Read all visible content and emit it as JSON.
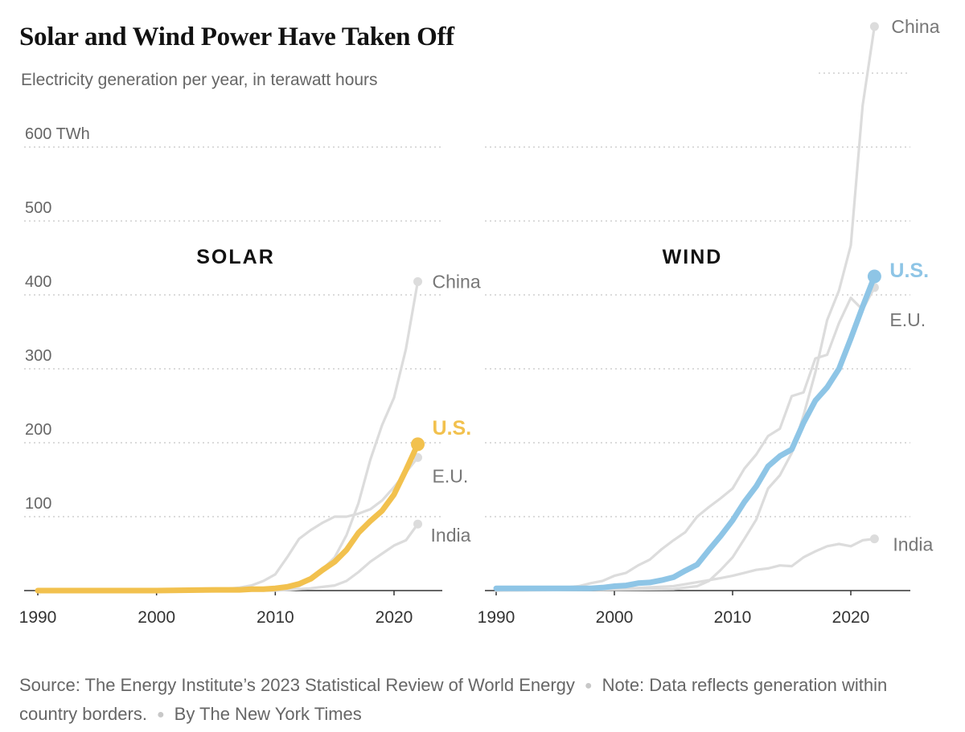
{
  "header": {
    "title": "Solar and Wind Power Have Taken Off",
    "subtitle": "Electricity generation per year, in terawatt hours"
  },
  "footer": {
    "source": "Source: The Energy Institute’s 2023 Statistical Review of World Energy",
    "note": "Note: Data reflects generation within country borders.",
    "byline": "By The New York Times"
  },
  "colors": {
    "solar": "#f2c14e",
    "wind": "#8ec5e6",
    "other": "#dcdcdc"
  },
  "chart_data": [
    {
      "type": "line",
      "title": "SOLAR",
      "xlim": [
        1990,
        2024
      ],
      "ylim": [
        0,
        650
      ],
      "x_ticks": [
        1990,
        2000,
        2010,
        2020
      ],
      "y_ticks": [
        {
          "value": 100,
          "label": "100"
        },
        {
          "value": 200,
          "label": "200"
        },
        {
          "value": 300,
          "label": "300"
        },
        {
          "value": 400,
          "label": "400"
        },
        {
          "value": 500,
          "label": "500"
        },
        {
          "value": 600,
          "label": "600 TWh"
        }
      ],
      "grid": true,
      "series": [
        {
          "name": "China",
          "highlight": false,
          "x": [
            1990,
            2005,
            2010,
            2011,
            2012,
            2013,
            2014,
            2015,
            2016,
            2017,
            2018,
            2019,
            2020,
            2021,
            2022
          ],
          "y": [
            0,
            0,
            1,
            3,
            6,
            15,
            29,
            45,
            75,
            118,
            177,
            224,
            261,
            327,
            418
          ]
        },
        {
          "name": "E.U.",
          "highlight": false,
          "x": [
            1990,
            2005,
            2007,
            2008,
            2009,
            2010,
            2011,
            2012,
            2013,
            2014,
            2015,
            2016,
            2017,
            2018,
            2019,
            2020,
            2021,
            2022
          ],
          "y": [
            0,
            1,
            4,
            7,
            13,
            22,
            45,
            70,
            82,
            92,
            100,
            100,
            104,
            110,
            122,
            140,
            160,
            180
          ]
        },
        {
          "name": "India",
          "highlight": false,
          "x": [
            1990,
            2010,
            2011,
            2012,
            2013,
            2014,
            2015,
            2016,
            2017,
            2018,
            2019,
            2020,
            2021,
            2022
          ],
          "y": [
            0,
            0,
            1,
            2,
            3,
            5,
            7,
            13,
            25,
            39,
            50,
            61,
            68,
            90
          ]
        },
        {
          "name": "U.S.",
          "highlight": true,
          "x": [
            1990,
            1995,
            2000,
            2005,
            2006,
            2007,
            2008,
            2009,
            2010,
            2011,
            2012,
            2013,
            2014,
            2015,
            2016,
            2017,
            2018,
            2019,
            2020,
            2021,
            2022
          ],
          "y": [
            0,
            0,
            0,
            1,
            1,
            1,
            2,
            2,
            3,
            5,
            9,
            16,
            28,
            39,
            55,
            78,
            94,
            108,
            130,
            163,
            198
          ]
        }
      ]
    },
    {
      "type": "line",
      "title": "WIND",
      "xlim": [
        1990,
        2024
      ],
      "ylim": [
        0,
        700
      ],
      "x_ticks": [
        1990,
        2000,
        2010,
        2020
      ],
      "y_ticks": [
        {
          "value": 100,
          "label": ""
        },
        {
          "value": 200,
          "label": ""
        },
        {
          "value": 300,
          "label": ""
        },
        {
          "value": 400,
          "label": ""
        },
        {
          "value": 500,
          "label": ""
        },
        {
          "value": 600,
          "label": ""
        },
        {
          "value": 700,
          "label": ""
        }
      ],
      "grid": true,
      "series": [
        {
          "name": "China",
          "highlight": false,
          "x": [
            1990,
            2005,
            2006,
            2007,
            2008,
            2009,
            2010,
            2011,
            2012,
            2013,
            2014,
            2015,
            2016,
            2017,
            2018,
            2019,
            2020,
            2021,
            2022
          ],
          "y": [
            0,
            2,
            4,
            6,
            13,
            28,
            45,
            70,
            96,
            138,
            156,
            186,
            237,
            295,
            366,
            406,
            467,
            656,
            763
          ]
        },
        {
          "name": "E.U.",
          "highlight": false,
          "x": [
            1990,
            1995,
            1997,
            1998,
            1999,
            2000,
            2001,
            2002,
            2003,
            2004,
            2005,
            2006,
            2007,
            2008,
            2009,
            2010,
            2011,
            2012,
            2013,
            2014,
            2015,
            2016,
            2017,
            2018,
            2019,
            2020,
            2021,
            2022
          ],
          "y": [
            1,
            3,
            6,
            10,
            13,
            20,
            24,
            34,
            42,
            56,
            68,
            79,
            100,
            113,
            125,
            138,
            165,
            184,
            209,
            219,
            263,
            268,
            314,
            319,
            362,
            396,
            380,
            410
          ]
        },
        {
          "name": "India",
          "highlight": false,
          "x": [
            1990,
            2000,
            2005,
            2008,
            2009,
            2010,
            2011,
            2012,
            2013,
            2014,
            2015,
            2016,
            2017,
            2018,
            2019,
            2020,
            2021,
            2022
          ],
          "y": [
            0,
            2,
            6,
            14,
            17,
            20,
            24,
            28,
            30,
            34,
            33,
            45,
            53,
            60,
            63,
            60,
            68,
            70
          ]
        },
        {
          "name": "U.S.",
          "highlight": true,
          "x": [
            1990,
            1995,
            1998,
            1999,
            2000,
            2001,
            2002,
            2003,
            2004,
            2005,
            2006,
            2007,
            2008,
            2009,
            2010,
            2011,
            2012,
            2013,
            2014,
            2015,
            2016,
            2017,
            2018,
            2019,
            2020,
            2021,
            2022
          ],
          "y": [
            3,
            3,
            3,
            4,
            6,
            7,
            10,
            11,
            14,
            18,
            27,
            35,
            55,
            74,
            95,
            120,
            141,
            168,
            182,
            191,
            227,
            257,
            275,
            300,
            341,
            384,
            425
          ]
        }
      ]
    }
  ]
}
